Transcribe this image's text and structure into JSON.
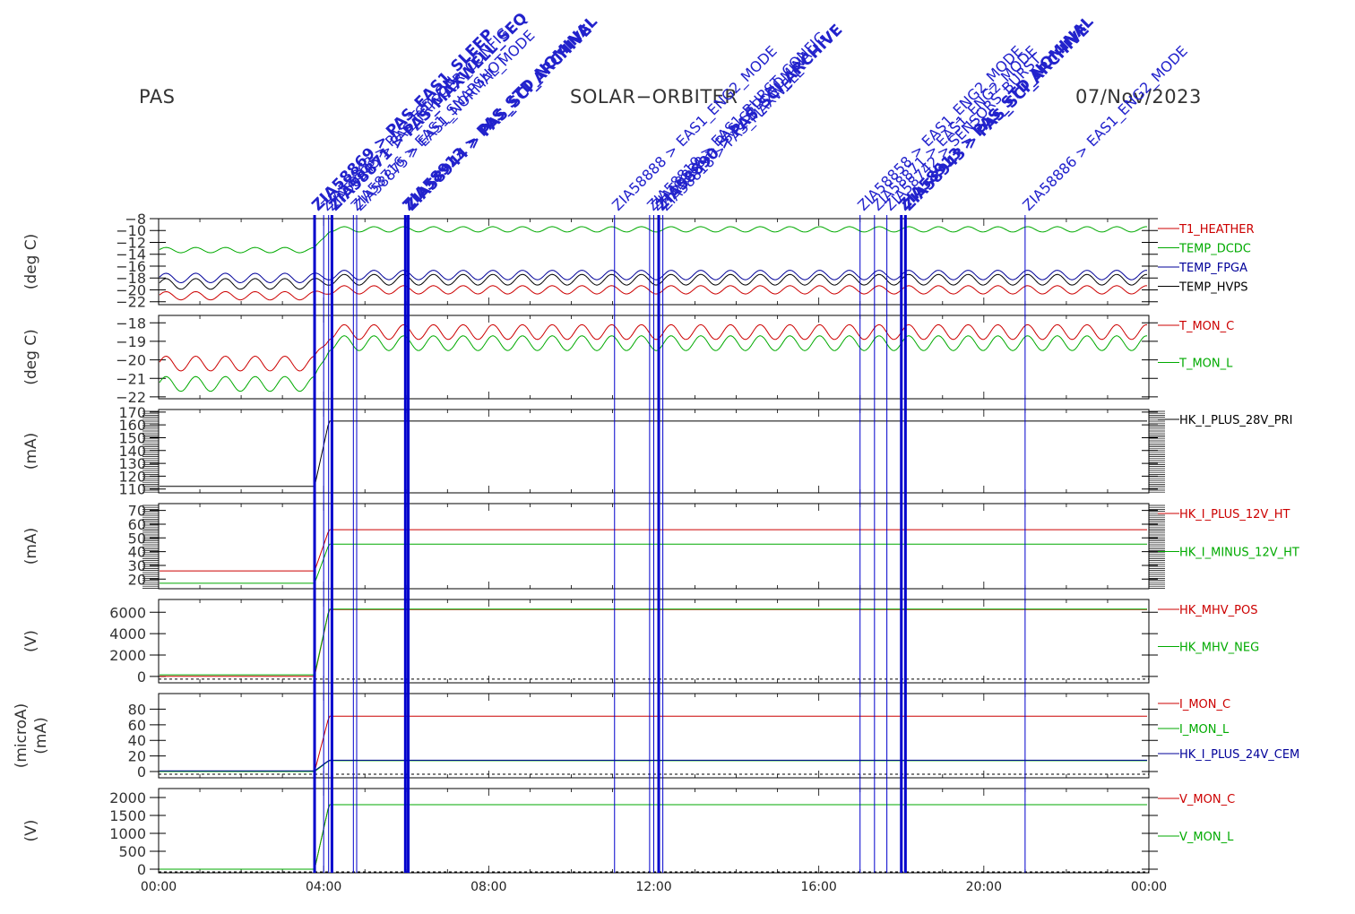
{
  "header": {
    "left": "PAS",
    "center": "SOLAR−ORBITER",
    "right": "07/Nov/2023"
  },
  "chart_data": {
    "type": "line",
    "x_tick_labels": [
      "00:00",
      "04:00",
      "08:00",
      "12:00",
      "16:00",
      "20:00",
      "00:00"
    ],
    "x_range_hours": [
      0,
      24
    ],
    "event_markers": [
      {
        "t": 3.78,
        "label": "ZIA58869 > PAS_EAS1_SLEEP",
        "bold": true
      },
      {
        "t": 4.0,
        "label": "ZIA58863 > PAS_TCD_ON",
        "bold": false
      },
      {
        "t": 4.12,
        "label": "ZIA58845 > PAS_TRIGGER_CONFIG",
        "bold": false
      },
      {
        "t": 4.2,
        "label": "ZIA58871 > PAS_MAXWELL_SEQ",
        "bold": true
      },
      {
        "t": 4.72,
        "label": "ZIA58716 > EAS1_SNAPSHOT",
        "bold": false
      },
      {
        "t": 4.8,
        "label": "ZIA58875 > EAS1_NORMAL_MODE",
        "bold": false
      },
      {
        "t": 5.98,
        "label": "ZIA58913 > PAS_STD_NOMINAL",
        "bold": true
      },
      {
        "t": 6.05,
        "label": "ZIA58944 > PAS_SCI_ARCHIVE",
        "bold": true
      },
      {
        "t": 11.05,
        "label": "ZIA58888 > EAS1_ENG2_MODE",
        "bold": false
      },
      {
        "t": 11.9,
        "label": "ZIA58819 > EAS1_BURST_CONFIG",
        "bold": false
      },
      {
        "t": 12.0,
        "label": "ZIA58888 > PAS_STD_NOMINAL",
        "bold": false
      },
      {
        "t": 12.12,
        "label": "ZIA58890 > PAS_SCI_ARCHIVE",
        "bold": true
      },
      {
        "t": 12.22,
        "label": "ZIA58818 > PAS_MAXWELL",
        "bold": false
      },
      {
        "t": 17.0,
        "label": "ZIA58858 > EAS1_ENG2_MODE",
        "bold": false
      },
      {
        "t": 17.35,
        "label": "ZIA58871 > EAS1_ENG2_MODE",
        "bold": false
      },
      {
        "t": 17.65,
        "label": "ZIA58742 > SENSORS_BURST",
        "bold": false
      },
      {
        "t": 18.0,
        "label": "ZIA58913 > PAS_STD_NOMINAL",
        "bold": true
      },
      {
        "t": 18.1,
        "label": "ZIA58943 > PAS_SCI_ARCHIVE",
        "bold": true
      },
      {
        "t": 21.0,
        "label": "ZIA58886 > EAS1_ENG2_MODE",
        "bold": false
      }
    ],
    "panels": [
      {
        "unit": "(deg C)",
        "y_range": [
          -22.5,
          -8
        ],
        "y_ticks": [
          -8,
          -10,
          -12,
          -14,
          -16,
          -18,
          -20,
          -22
        ],
        "y_tick_labels": [
          "−8",
          "−10",
          "−12",
          "−14",
          "−16",
          "−18",
          "−20",
          "−22"
        ],
        "series": [
          {
            "name": "T1_HEATHER",
            "color": "#cc0000",
            "before": -21.0,
            "after": -20.0,
            "amp": 0.7,
            "period_h": 0.72
          },
          {
            "name": "TEMP_DCDC",
            "color": "#00aa00",
            "before": -13.3,
            "after": -9.8,
            "amp": 0.45,
            "period_h": 0.72
          },
          {
            "name": "TEMP_FPGA",
            "color": "#000099",
            "before": -18.0,
            "after": -17.5,
            "amp": 0.8,
            "period_h": 0.72
          },
          {
            "name": "TEMP_HVPS",
            "color": "#000000",
            "before": -19.0,
            "after": -18.3,
            "amp": 0.9,
            "period_h": 0.72
          }
        ]
      },
      {
        "unit": "(deg C)",
        "y_range": [
          -22.1,
          -17.6
        ],
        "y_ticks": [
          -18,
          -19,
          -20,
          -21,
          -22
        ],
        "y_tick_labels": [
          "−18",
          "−19",
          "−20",
          "−21",
          "−22"
        ],
        "series": [
          {
            "name": "T_MON_C",
            "color": "#cc0000",
            "before": -20.2,
            "after": -18.5,
            "amp": 0.4,
            "period_h": 0.72
          },
          {
            "name": "T_MON_L",
            "color": "#00aa00",
            "before": -21.3,
            "after": -19.1,
            "amp": 0.4,
            "period_h": 0.72
          }
        ]
      },
      {
        "unit": "(mA)",
        "y_range": [
          107,
          172
        ],
        "y_ticks": [
          110,
          120,
          130,
          140,
          150,
          160,
          170
        ],
        "y_tick_labels": [
          "110",
          "120",
          "130",
          "140",
          "150",
          "160",
          "170"
        ],
        "series": [
          {
            "name": "HK_I_PLUS_28V_PRI",
            "color": "#000000",
            "before": 112,
            "after": 163,
            "amp": 0,
            "period_h": 0
          }
        ]
      },
      {
        "unit": "(mA)",
        "y_range": [
          13,
          75
        ],
        "y_ticks": [
          20,
          30,
          40,
          50,
          60,
          70
        ],
        "y_tick_labels": [
          "20",
          "30",
          "40",
          "50",
          "60",
          "70"
        ],
        "series": [
          {
            "name": "HK_I_PLUS_12V_HT",
            "color": "#cc0000",
            "before": 26,
            "after": 56,
            "amp": 0,
            "period_h": 0
          },
          {
            "name": "HK_I_MINUS_12V_HT",
            "color": "#00aa00",
            "before": 17,
            "after": 45.5,
            "amp": 0,
            "period_h": 0
          }
        ]
      },
      {
        "unit": "(V)",
        "y_range": [
          -600,
          7200
        ],
        "y_ticks": [
          0,
          2000,
          4000,
          6000
        ],
        "y_tick_labels": [
          "0",
          "2000",
          "4000",
          "6000"
        ],
        "zero_line": true,
        "series": [
          {
            "name": "HK_MHV_POS",
            "color": "#cc0000",
            "before": 0,
            "after": 6250,
            "amp": 0,
            "period_h": 0
          },
          {
            "name": "HK_MHV_NEG",
            "color": "#00aa00",
            "before": 150,
            "after": 6300,
            "amp": 0,
            "period_h": 0
          }
        ]
      },
      {
        "unit": "(microA)\n(mA)",
        "y_range": [
          -8,
          100
        ],
        "y_ticks": [
          0,
          20,
          40,
          60,
          80
        ],
        "y_tick_labels": [
          "0",
          "20",
          "40",
          "60",
          "80"
        ],
        "zero_line": true,
        "series": [
          {
            "name": "I_MON_C",
            "color": "#cc0000",
            "before": 0,
            "after": 71,
            "amp": 0,
            "period_h": 0
          },
          {
            "name": "I_MON_L",
            "color": "#00aa00",
            "before": 0,
            "after": 14,
            "amp": 0,
            "period_h": 0
          },
          {
            "name": "HK_I_PLUS_24V_CEM",
            "color": "#000099",
            "before": 1,
            "after": 14.5,
            "amp": 0,
            "period_h": 0
          }
        ]
      },
      {
        "unit": "(V)",
        "y_range": [
          -100,
          2250
        ],
        "y_ticks": [
          0,
          500,
          1000,
          1500,
          2000
        ],
        "y_tick_labels": [
          "0",
          "500",
          "1000",
          "1500",
          "2000"
        ],
        "zero_line": true,
        "series": [
          {
            "name": "V_MON_C",
            "color": "#cc0000",
            "before": 0,
            "after": 1800,
            "amp": 0,
            "period_h": 0
          },
          {
            "name": "V_MON_L",
            "color": "#00aa00",
            "before": 0,
            "after": 1800,
            "amp": 0,
            "period_h": 0
          }
        ]
      }
    ]
  }
}
